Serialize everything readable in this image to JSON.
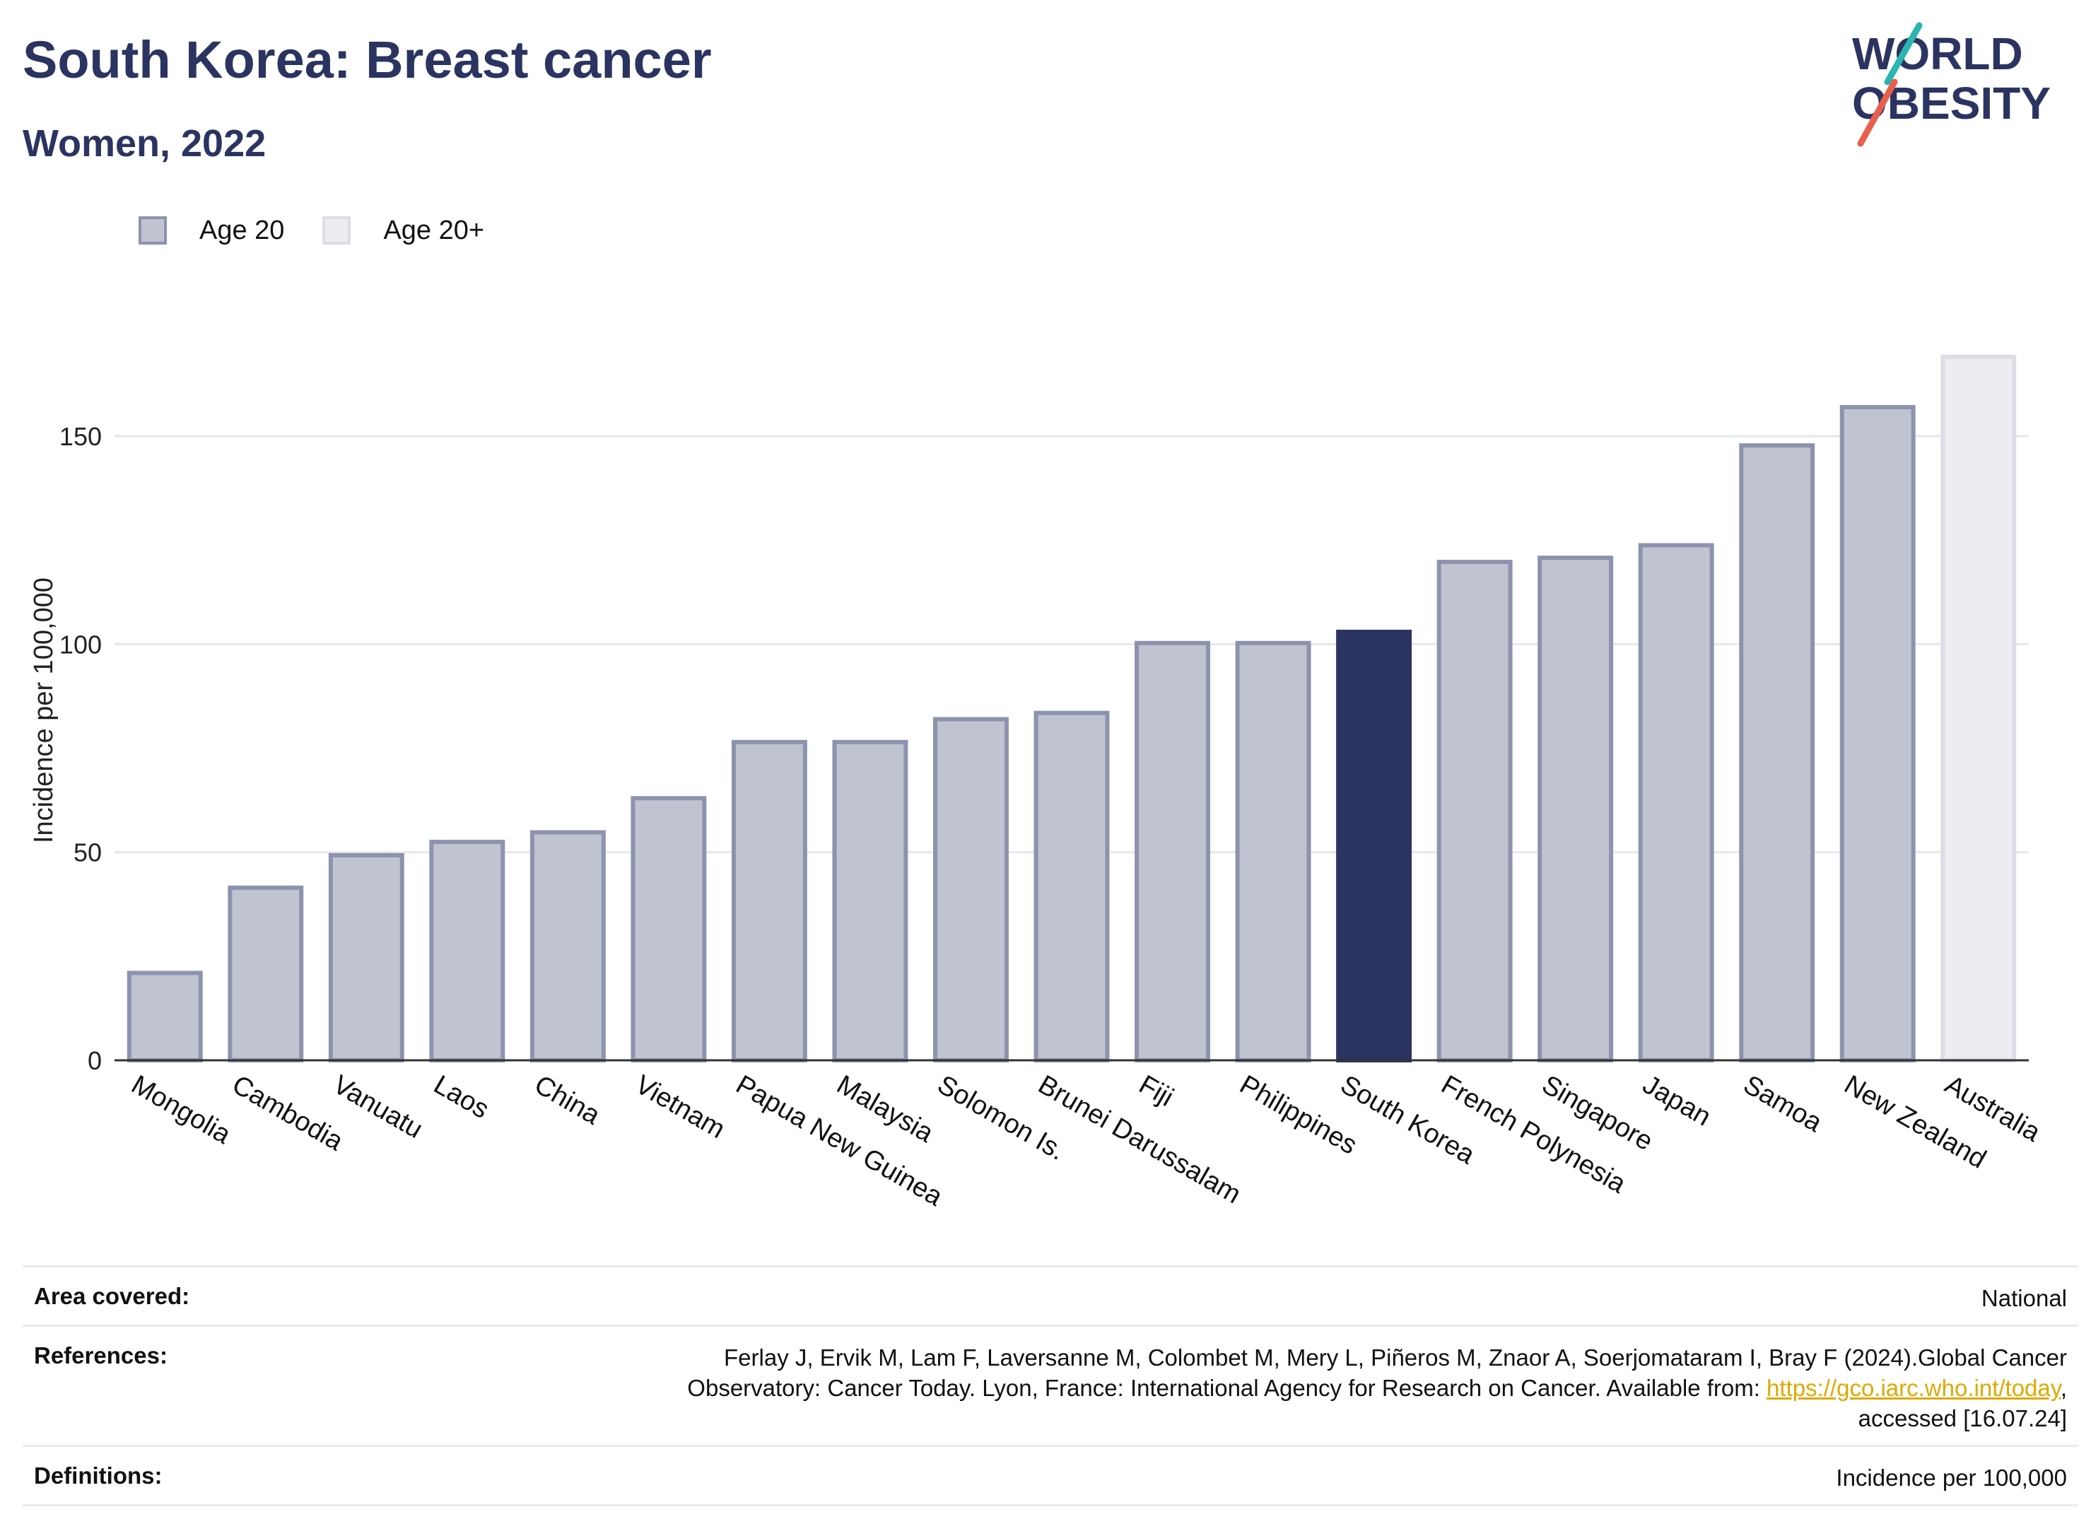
{
  "header": {
    "title": "South Korea: Breast cancer",
    "subtitle": "Women, 2022"
  },
  "logo": {
    "line1": "WORLD",
    "line2": "OBESITY",
    "accent_colors": [
      "#2bb5b0",
      "#e8604c"
    ],
    "text_color": "#2b3461"
  },
  "legend": {
    "items": [
      {
        "label": "Age 20",
        "fill": "#c0c3d0",
        "stroke": "#8d93ad"
      },
      {
        "label": "Age 20+",
        "fill": "#ecedf1",
        "stroke": "#dcdee5"
      }
    ]
  },
  "chart_data": {
    "type": "bar",
    "title": "",
    "xlabel": "",
    "ylabel": "Incidence per 100,000",
    "ylim": [
      0,
      175
    ],
    "yticks": [
      0,
      50,
      100,
      150
    ],
    "grid": true,
    "legend_placement": "top-left",
    "categories": [
      "Mongolia",
      "Cambodia",
      "Vanuatu",
      "Laos",
      "China",
      "Vietnam",
      "Papua New Guinea",
      "Malaysia",
      "Solomon Is.",
      "Brunei Darussalam",
      "Fiji",
      "Philippines",
      "South Korea",
      "French Polynesia",
      "Singapore",
      "Japan",
      "Samoa",
      "New Zealand",
      "Australia"
    ],
    "values": [
      21.5,
      42,
      49.8,
      53,
      55.3,
      63.5,
      77,
      77,
      82.5,
      84,
      100.8,
      100.8,
      103.5,
      120.3,
      121.3,
      124.3,
      148.3,
      157.5,
      169.6
    ],
    "groups": [
      "Age 20",
      "Age 20",
      "Age 20",
      "Age 20",
      "Age 20",
      "Age 20",
      "Age 20",
      "Age 20",
      "Age 20",
      "Age 20",
      "Age 20",
      "Age 20",
      "Age 20",
      "Age 20",
      "Age 20",
      "Age 20",
      "Age 20",
      "Age 20",
      "Age 20+"
    ],
    "highlight": "South Korea",
    "colors": {
      "age20_fill": "#c0c3d0",
      "age20_stroke": "#8d93ad",
      "age20plus_fill": "#ecedf1",
      "age20plus_stroke": "#dcdee5",
      "highlight": "#2b3461",
      "grid": "#e6e8ee",
      "axis": "#333333"
    }
  },
  "info": {
    "area_key": "Area covered:",
    "area_val": "National",
    "ref_key": "References:",
    "ref_text_1": "Ferlay J, Ervik M, Lam F, Laversanne M, Colombet M, Mery L, Piñeros M, Znaor A, Soerjomataram I, Bray F (2024).Global Cancer Observatory: Cancer Today. Lyon, France: International Agency for Research on Cancer. Available from: ",
    "ref_link": "https://gco.iarc.who.int/today",
    "ref_text_2": ", accessed [16.07.24]",
    "def_key": "Definitions:",
    "def_val": "Incidence per 100,000"
  }
}
